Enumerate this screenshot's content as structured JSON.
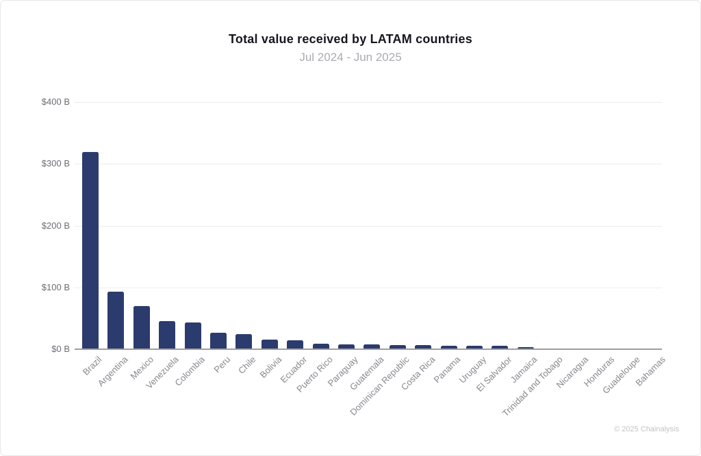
{
  "header": {
    "title": "Total value received by LATAM countries",
    "subtitle": "Jul 2024 - Jun 2025"
  },
  "frame": {
    "attribution": "© 2025 Chainalysis"
  },
  "chart_data": {
    "type": "bar",
    "title": "Total value received by LATAM countries",
    "subtitle": "Jul 2024 - Jun 2025",
    "unit": "USD billions",
    "categories": [
      "Brazil",
      "Argentina",
      "Mexico",
      "Venezuela",
      "Colombia",
      "Peru",
      "Chile",
      "Bolivia",
      "Ecuador",
      "Puerto Rico",
      "Paraguay",
      "Guatemala",
      "Dominican Republic",
      "Costa Rica",
      "Panama",
      "Uruguay",
      "El Salvador",
      "Jamaica",
      "Trinidad and Tobago",
      "Nicaragua",
      "Honduras",
      "Guadeloupe",
      "Bahamas"
    ],
    "values": [
      319,
      93,
      70,
      45,
      43,
      27,
      24,
      15,
      14,
      9,
      8,
      7.5,
      7,
      6.5,
      6,
      5.5,
      5,
      3,
      1,
      0.8,
      0.6,
      0.3,
      0.2
    ],
    "xlabel": "",
    "ylabel": "",
    "ylim": [
      0,
      400
    ],
    "yticks": [
      {
        "value": 0,
        "label": "$0 B"
      },
      {
        "value": 100,
        "label": "$100 B"
      },
      {
        "value": 200,
        "label": "$200 B"
      },
      {
        "value": 300,
        "label": "$300 B"
      },
      {
        "value": 400,
        "label": "$400 B"
      }
    ],
    "grid": true,
    "legend": false,
    "bar_color": "#2c3b6e"
  }
}
